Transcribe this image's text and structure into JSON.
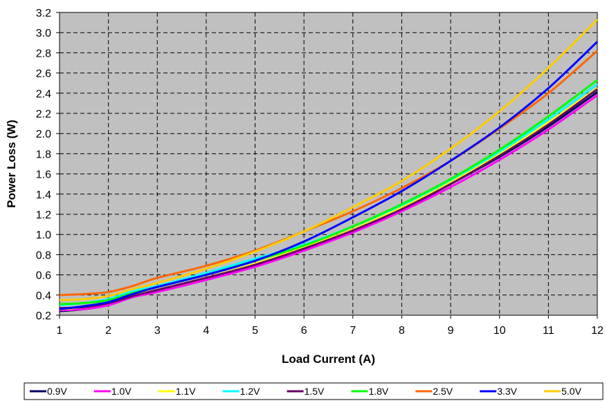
{
  "chart_data": {
    "type": "line",
    "title": "",
    "xlabel": "Load Current (A)",
    "ylabel": "Power Loss (W)",
    "xlim": [
      1,
      12
    ],
    "ylim": [
      0.2,
      3.2
    ],
    "xticks": [
      1,
      2,
      3,
      4,
      5,
      6,
      7,
      8,
      9,
      10,
      11,
      12
    ],
    "yticks": [
      "0.2",
      "0.4",
      "0.6",
      "0.8",
      "1.0",
      "1.2",
      "1.4",
      "1.6",
      "1.8",
      "2.0",
      "2.2",
      "2.4",
      "2.6",
      "2.8",
      "3.0",
      "3.2"
    ],
    "grid": true,
    "plot_background": "#c0c0c0",
    "legend_position": "bottom",
    "x": [
      1,
      1.5,
      2,
      2.5,
      3,
      4,
      5,
      6,
      7,
      8,
      9,
      10,
      11,
      12
    ],
    "series": [
      {
        "name": "0.9V",
        "color": "#000066",
        "values": [
          0.24,
          0.26,
          0.3,
          0.38,
          0.44,
          0.55,
          0.69,
          0.85,
          1.03,
          1.24,
          1.5,
          1.77,
          2.07,
          2.41
        ]
      },
      {
        "name": "1.0V",
        "color": "#ff00ff",
        "values": [
          0.25,
          0.26,
          0.3,
          0.38,
          0.43,
          0.55,
          0.68,
          0.84,
          1.02,
          1.23,
          1.47,
          1.74,
          2.04,
          2.38
        ]
      },
      {
        "name": "1.1V",
        "color": "#ffff00",
        "values": [
          0.26,
          0.28,
          0.32,
          0.4,
          0.45,
          0.57,
          0.71,
          0.87,
          1.05,
          1.27,
          1.52,
          1.8,
          2.11,
          2.45
        ]
      },
      {
        "name": "1.2V",
        "color": "#00ffff",
        "values": [
          0.3,
          0.32,
          0.36,
          0.44,
          0.49,
          0.62,
          0.76,
          0.9,
          1.08,
          1.29,
          1.54,
          1.82,
          2.14,
          2.49
        ]
      },
      {
        "name": "1.5V",
        "color": "#660066",
        "values": [
          0.27,
          0.28,
          0.32,
          0.39,
          0.45,
          0.57,
          0.7,
          0.86,
          1.04,
          1.25,
          1.5,
          1.78,
          2.09,
          2.44
        ]
      },
      {
        "name": "1.8V",
        "color": "#00ff00",
        "values": [
          0.31,
          0.32,
          0.35,
          0.42,
          0.48,
          0.6,
          0.74,
          0.89,
          1.08,
          1.3,
          1.55,
          1.84,
          2.17,
          2.53
        ]
      },
      {
        "name": "2.5V",
        "color": "#ff6600",
        "values": [
          0.4,
          0.41,
          0.43,
          0.49,
          0.57,
          0.69,
          0.84,
          1.03,
          1.23,
          1.46,
          1.73,
          2.05,
          2.4,
          2.82
        ]
      },
      {
        "name": "3.3V",
        "color": "#0000ff",
        "values": [
          0.26,
          0.29,
          0.33,
          0.41,
          0.48,
          0.6,
          0.74,
          0.93,
          1.17,
          1.43,
          1.73,
          2.06,
          2.45,
          2.91
        ]
      },
      {
        "name": "5.0V",
        "color": "#ffcc00",
        "values": [
          0.35,
          0.36,
          0.39,
          0.46,
          0.52,
          0.66,
          0.83,
          1.03,
          1.27,
          1.53,
          1.85,
          2.22,
          2.65,
          3.13
        ]
      }
    ]
  }
}
